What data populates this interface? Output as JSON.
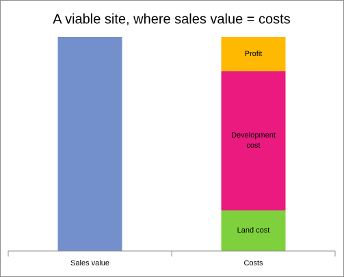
{
  "chart_data": {
    "type": "stacked_bar",
    "title": "A viable site, where sales value = costs",
    "categories": [
      "Sales value",
      "Costs"
    ],
    "series": [
      {
        "color": "#7490cc",
        "values": [
          100,
          null
        ]
      },
      {
        "name": "Land cost",
        "color": "#7ed13c",
        "values": [
          null,
          19
        ]
      },
      {
        "name": "Development cost",
        "color": "#ea1a7f",
        "values": [
          null,
          65
        ]
      },
      {
        "name": "Profit",
        "color": "#ffb900",
        "values": [
          null,
          16
        ]
      }
    ],
    "ylim": [
      0,
      100
    ]
  }
}
